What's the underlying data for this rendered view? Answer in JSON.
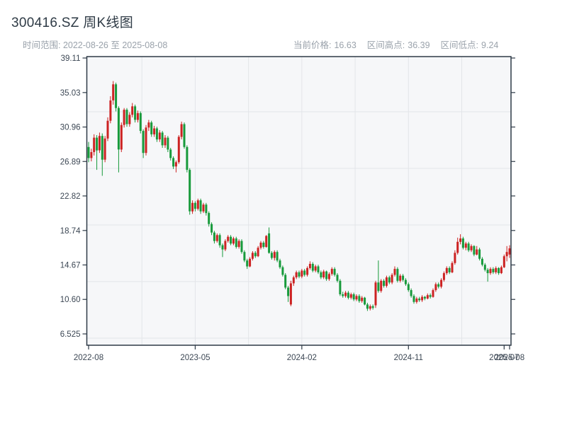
{
  "header": {
    "title": "300416.SZ 周K线图",
    "date_range_text": "时间范围: 2022-08-26 至 2025-08-08",
    "stats": [
      {
        "label": "当前价格:",
        "value": "16.63"
      },
      {
        "label": "区间高点:",
        "value": "36.39"
      },
      {
        "label": "区间低点:",
        "value": "9.24"
      }
    ]
  },
  "chart_data": {
    "type": "candlestick",
    "symbol": "300416.SZ",
    "period": "weekly",
    "title": "300416.SZ 周K线图",
    "date_start": "2022-08-26",
    "date_end": "2025-08-08",
    "current_price": 16.63,
    "range_high": 36.39,
    "range_low": 9.24,
    "grid": true,
    "ylim": [
      6.525,
      39.11
    ],
    "y_ticks": [
      "6.525",
      "10.60",
      "14.67",
      "18.74",
      "22.82",
      "26.89",
      "30.96",
      "35.03",
      "39.11"
    ],
    "x_ticks": [
      {
        "week": 0,
        "label": "2022-08"
      },
      {
        "week": 39,
        "label": "2023-05"
      },
      {
        "week": 78,
        "label": "2024-02"
      },
      {
        "week": 117,
        "label": "2024-11"
      },
      {
        "week": 152,
        "label": "2025-07"
      },
      {
        "week": 154,
        "label": "2025-08"
      }
    ],
    "up_color": "#cc2222",
    "down_color": "#179a3b",
    "plot_bg": "#f6f7f9",
    "grid_color": "#e3e5e9",
    "axis_color": "#2e3a47",
    "label_color": "#3c4754",
    "ohlc_order": [
      "open",
      "high",
      "low",
      "close"
    ],
    "candles_ohlc": [
      [
        28.6,
        29.2,
        26.8,
        27.3
      ],
      [
        27.3,
        28.4,
        26.9,
        28.0
      ],
      [
        28.0,
        30.1,
        27.6,
        29.7
      ],
      [
        29.7,
        30.0,
        25.9,
        28.2
      ],
      [
        28.2,
        30.3,
        27.9,
        29.9
      ],
      [
        29.9,
        30.2,
        25.2,
        27.1
      ],
      [
        27.1,
        29.9,
        26.8,
        29.6
      ],
      [
        29.6,
        32.1,
        29.3,
        31.7
      ],
      [
        31.7,
        34.6,
        31.4,
        34.1
      ],
      [
        34.1,
        36.39,
        33.6,
        36.0
      ],
      [
        36.0,
        36.2,
        32.8,
        33.2
      ],
      [
        33.2,
        33.4,
        25.6,
        28.3
      ],
      [
        28.3,
        31.5,
        28.0,
        31.2
      ],
      [
        31.2,
        33.2,
        30.9,
        33.0
      ],
      [
        33.0,
        33.2,
        31.0,
        31.3
      ],
      [
        31.3,
        32.7,
        31.0,
        32.4
      ],
      [
        32.4,
        33.8,
        32.1,
        33.4
      ],
      [
        33.4,
        33.6,
        31.5,
        31.8
      ],
      [
        31.8,
        32.9,
        31.5,
        32.6
      ],
      [
        32.6,
        32.8,
        30.2,
        30.5
      ],
      [
        30.5,
        30.7,
        27.3,
        27.9
      ],
      [
        27.9,
        31.2,
        27.6,
        30.9
      ],
      [
        30.9,
        31.8,
        30.5,
        31.5
      ],
      [
        31.5,
        31.7,
        29.8,
        30.1
      ],
      [
        30.1,
        31.1,
        29.8,
        30.8
      ],
      [
        30.8,
        31.0,
        29.2,
        29.5
      ],
      [
        29.5,
        30.6,
        29.2,
        30.3
      ],
      [
        30.3,
        30.5,
        28.5,
        28.8
      ],
      [
        28.8,
        30.0,
        28.5,
        29.7
      ],
      [
        29.7,
        29.9,
        28.0,
        28.3
      ],
      [
        28.3,
        28.5,
        27.0,
        27.3
      ],
      [
        27.3,
        27.5,
        26.0,
        26.3
      ],
      [
        26.3,
        27.0,
        25.6,
        26.8
      ],
      [
        26.8,
        30.0,
        26.6,
        29.8
      ],
      [
        29.8,
        31.6,
        29.5,
        31.3
      ],
      [
        31.3,
        31.5,
        28.4,
        28.6
      ],
      [
        28.6,
        28.8,
        25.6,
        25.9
      ],
      [
        25.9,
        26.1,
        20.6,
        21.0
      ],
      [
        21.0,
        22.3,
        20.7,
        22.0
      ],
      [
        22.0,
        22.2,
        21.0,
        21.3
      ],
      [
        21.3,
        22.5,
        21.1,
        22.3
      ],
      [
        22.3,
        22.5,
        20.7,
        21.0
      ],
      [
        21.0,
        22.0,
        20.8,
        21.8
      ],
      [
        21.8,
        22.0,
        20.5,
        20.8
      ],
      [
        20.8,
        21.0,
        19.2,
        19.5
      ],
      [
        19.5,
        19.7,
        18.2,
        18.5
      ],
      [
        18.5,
        18.7,
        17.2,
        17.5
      ],
      [
        17.5,
        18.4,
        17.3,
        18.2
      ],
      [
        18.2,
        18.4,
        16.7,
        17.0
      ],
      [
        17.0,
        17.2,
        15.6,
        16.5
      ],
      [
        16.5,
        17.7,
        16.3,
        17.5
      ],
      [
        17.5,
        18.2,
        17.3,
        18.0
      ],
      [
        18.0,
        18.2,
        17.0,
        17.2
      ],
      [
        17.2,
        18.0,
        17.0,
        17.8
      ],
      [
        17.8,
        18.0,
        16.6,
        16.8
      ],
      [
        16.8,
        17.7,
        16.6,
        17.5
      ],
      [
        17.5,
        17.7,
        16.0,
        16.2
      ],
      [
        16.2,
        16.4,
        15.0,
        15.2
      ],
      [
        15.2,
        15.4,
        14.2,
        14.5
      ],
      [
        14.5,
        15.6,
        14.4,
        15.4
      ],
      [
        15.4,
        16.3,
        15.2,
        16.1
      ],
      [
        16.1,
        16.3,
        15.5,
        15.7
      ],
      [
        15.7,
        16.9,
        15.6,
        16.7
      ],
      [
        16.7,
        17.5,
        16.5,
        17.3
      ],
      [
        17.3,
        17.5,
        16.6,
        16.8
      ],
      [
        16.8,
        18.2,
        16.7,
        18.1
      ],
      [
        18.4,
        19.1,
        16.0,
        16.1
      ],
      [
        16.1,
        16.3,
        15.3,
        15.5
      ],
      [
        15.5,
        16.4,
        15.2,
        16.2
      ],
      [
        16.2,
        16.4,
        15.0,
        15.2
      ],
      [
        15.2,
        15.4,
        14.2,
        14.4
      ],
      [
        14.4,
        14.6,
        13.3,
        13.5
      ],
      [
        13.5,
        13.7,
        11.8,
        12.0
      ],
      [
        12.0,
        12.2,
        10.3,
        11.0
      ],
      [
        10.0,
        12.8,
        9.8,
        12.5
      ],
      [
        12.5,
        13.4,
        12.2,
        13.2
      ],
      [
        13.2,
        14.0,
        13.0,
        13.8
      ],
      [
        13.8,
        14.0,
        13.1,
        13.3
      ],
      [
        13.3,
        14.2,
        13.1,
        14.0
      ],
      [
        14.0,
        14.2,
        13.3,
        13.5
      ],
      [
        13.5,
        14.5,
        13.3,
        14.3
      ],
      [
        14.3,
        15.1,
        14.1,
        14.8
      ],
      [
        14.8,
        15.0,
        13.8,
        14.0
      ],
      [
        14.0,
        14.7,
        13.8,
        14.5
      ],
      [
        14.5,
        14.7,
        13.6,
        13.8
      ],
      [
        13.8,
        14.0,
        13.0,
        13.2
      ],
      [
        13.2,
        14.1,
        13.0,
        13.9
      ],
      [
        13.9,
        14.0,
        12.8,
        13.0
      ],
      [
        13.0,
        13.8,
        12.8,
        13.6
      ],
      [
        13.6,
        14.4,
        13.4,
        14.2
      ],
      [
        14.2,
        14.4,
        13.3,
        13.5
      ],
      [
        13.5,
        13.7,
        12.6,
        12.8
      ],
      [
        12.8,
        13.0,
        11.0,
        11.2
      ],
      [
        11.2,
        11.5,
        10.8,
        11.0
      ],
      [
        11.0,
        11.6,
        10.8,
        11.4
      ],
      [
        11.4,
        11.6,
        10.6,
        10.8
      ],
      [
        10.8,
        11.4,
        10.6,
        11.2
      ],
      [
        11.2,
        11.4,
        10.4,
        10.6
      ],
      [
        10.6,
        11.2,
        10.4,
        11.0
      ],
      [
        11.0,
        11.2,
        10.2,
        10.4
      ],
      [
        10.4,
        11.0,
        10.2,
        10.8
      ],
      [
        10.8,
        10.9,
        9.9,
        10.0
      ],
      [
        10.0,
        10.2,
        9.24,
        9.5
      ],
      [
        9.5,
        10.0,
        9.3,
        9.8
      ],
      [
        9.8,
        10.0,
        9.4,
        9.6
      ],
      [
        9.9,
        12.8,
        9.6,
        12.6
      ],
      [
        12.6,
        15.2,
        11.4,
        11.6
      ],
      [
        11.6,
        13.0,
        11.4,
        12.8
      ],
      [
        12.8,
        13.0,
        12.0,
        12.2
      ],
      [
        12.2,
        13.4,
        12.0,
        13.2
      ],
      [
        13.2,
        13.4,
        12.4,
        12.6
      ],
      [
        12.6,
        13.7,
        12.4,
        13.5
      ],
      [
        13.5,
        14.5,
        13.3,
        14.2
      ],
      [
        14.2,
        14.4,
        12.6,
        12.8
      ],
      [
        12.8,
        13.6,
        12.6,
        13.4
      ],
      [
        13.4,
        13.6,
        12.7,
        12.9
      ],
      [
        12.9,
        13.1,
        12.2,
        12.4
      ],
      [
        12.4,
        12.6,
        11.5,
        11.7
      ],
      [
        11.7,
        11.9,
        10.8,
        11.0
      ],
      [
        11.0,
        11.2,
        10.1,
        10.3
      ],
      [
        10.3,
        10.9,
        10.1,
        10.7
      ],
      [
        10.7,
        10.9,
        10.3,
        10.5
      ],
      [
        10.5,
        11.1,
        10.3,
        10.9
      ],
      [
        10.9,
        11.0,
        10.5,
        10.7
      ],
      [
        10.7,
        11.3,
        10.6,
        11.1
      ],
      [
        11.1,
        11.3,
        10.7,
        10.9
      ],
      [
        10.9,
        11.9,
        10.8,
        11.7
      ],
      [
        11.7,
        12.6,
        11.5,
        12.4
      ],
      [
        12.4,
        12.6,
        11.9,
        12.1
      ],
      [
        12.1,
        13.1,
        11.9,
        12.9
      ],
      [
        12.9,
        13.9,
        12.7,
        13.7
      ],
      [
        13.7,
        14.5,
        13.5,
        14.3
      ],
      [
        14.3,
        14.5,
        13.6,
        13.8
      ],
      [
        13.8,
        15.1,
        13.7,
        14.9
      ],
      [
        14.9,
        16.4,
        14.7,
        16.1
      ],
      [
        16.1,
        17.9,
        15.9,
        17.4
      ],
      [
        17.4,
        18.3,
        17.1,
        17.8
      ],
      [
        17.8,
        18.0,
        16.5,
        16.7
      ],
      [
        16.7,
        17.4,
        16.4,
        17.2
      ],
      [
        17.2,
        17.4,
        16.2,
        16.4
      ],
      [
        16.4,
        17.1,
        16.2,
        16.9
      ],
      [
        16.9,
        17.0,
        15.7,
        15.9
      ],
      [
        15.9,
        16.9,
        15.8,
        16.5
      ],
      [
        16.5,
        16.7,
        15.2,
        15.4
      ],
      [
        15.4,
        15.6,
        14.5,
        14.7
      ],
      [
        14.7,
        14.9,
        13.9,
        14.1
      ],
      [
        14.1,
        14.3,
        12.7,
        13.7
      ],
      [
        13.7,
        14.4,
        13.5,
        14.2
      ],
      [
        14.2,
        14.4,
        13.6,
        13.8
      ],
      [
        13.8,
        14.5,
        13.6,
        14.3
      ],
      [
        14.3,
        14.4,
        13.5,
        13.7
      ],
      [
        13.7,
        14.6,
        13.6,
        14.4
      ],
      [
        14.4,
        15.9,
        14.3,
        15.7
      ],
      [
        15.7,
        16.9,
        15.1,
        16.2
      ],
      [
        15.9,
        17.0,
        15.5,
        16.63
      ]
    ]
  }
}
